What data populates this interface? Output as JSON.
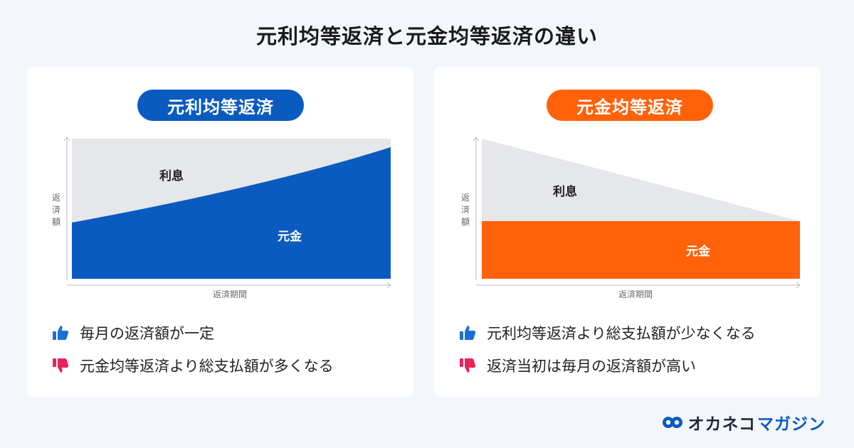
{
  "title": "元利均等返済と元金均等返済の違い",
  "left_card": {
    "pill_label": "元利均等返済",
    "chart": {
      "y_axis_label": [
        "返",
        "済",
        "額"
      ],
      "x_axis_label": "返済期間",
      "region_interest_label": "利息",
      "region_principal_label": "元金"
    },
    "pros": {
      "text": "毎月の返済額が一定"
    },
    "cons": {
      "text": "元金均等返済より総支払額が多くなる"
    }
  },
  "right_card": {
    "pill_label": "元金均等返済",
    "chart": {
      "y_axis_label": [
        "返",
        "済",
        "額"
      ],
      "x_axis_label": "返済期間",
      "region_interest_label": "利息",
      "region_principal_label": "元金"
    },
    "pros": {
      "text": "元利均等返済より総支払額が少なくなる"
    },
    "cons": {
      "text": "返済当初は毎月の返済額が高い"
    }
  },
  "logo": {
    "part1": "オカネコ",
    "part2": "マガジン"
  },
  "colors": {
    "blue": "#0a5bbf",
    "orange": "#ff6209",
    "interest_gray": "#e6e7ea",
    "thumb_up": "#1a6fd6",
    "thumb_down": "#e8235a"
  },
  "icons": [
    "thumbs-up-icon",
    "thumbs-down-icon",
    "logo-mark-icon"
  ]
}
